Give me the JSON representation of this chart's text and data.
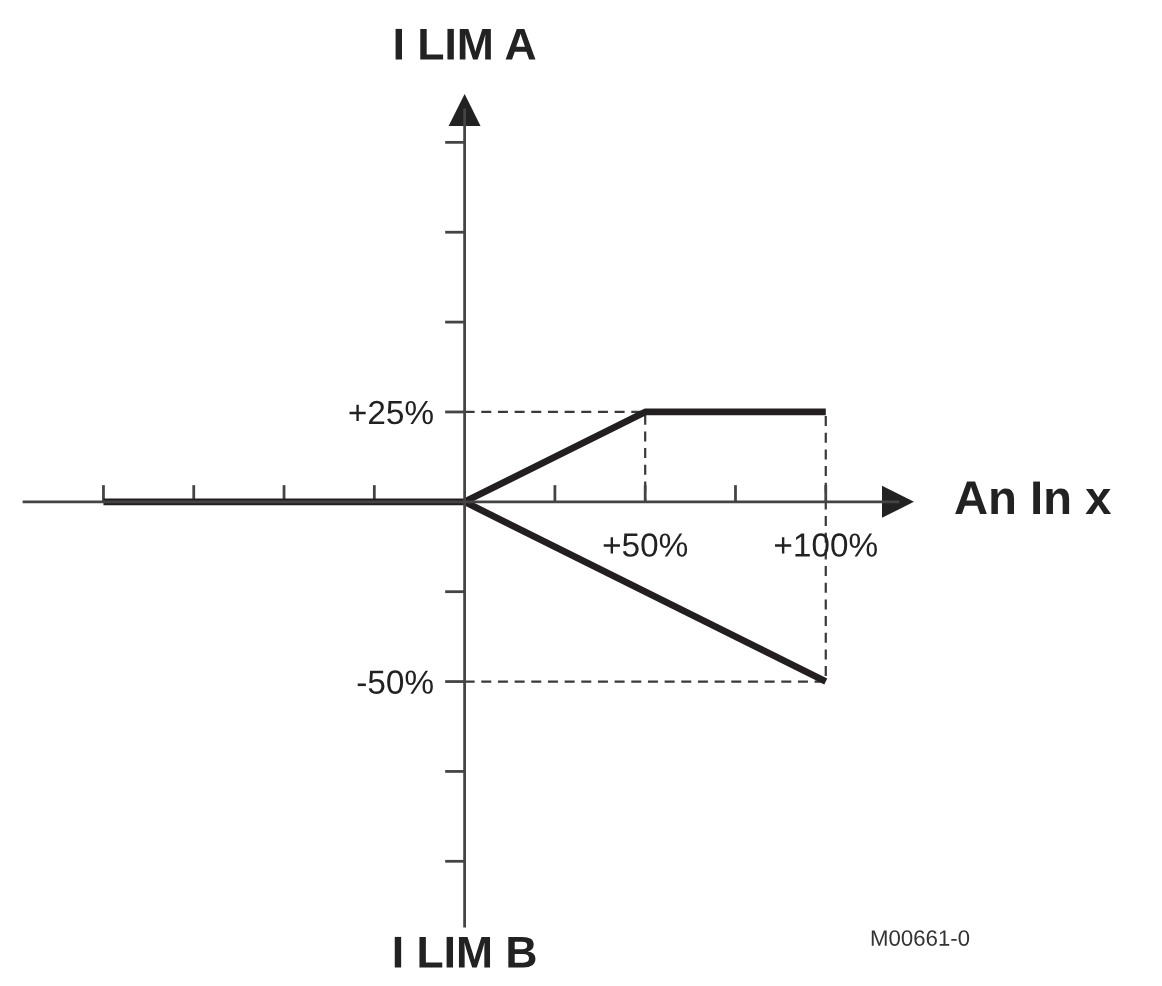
{
  "chart_data": {
    "type": "line",
    "ylabel": "I LIM A",
    "xlabel": "An In x",
    "annotations": [
      "I LIM B",
      "M00661-0"
    ],
    "series": [
      {
        "color": "#231f20",
        "x": [
          -100,
          0,
          50,
          100
        ],
        "values": [
          0,
          0,
          25,
          25
        ]
      },
      {
        "color": "#231f20",
        "x": [
          0,
          100
        ],
        "values": [
          0,
          -50
        ]
      },
      {
        "color": "#3a3a3a",
        "line_style": "dashed",
        "x": [
          0,
          50,
          50
        ],
        "values": [
          25,
          25,
          0
        ]
      },
      {
        "color": "#3a3a3a",
        "line_style": "dashed",
        "x": [
          0,
          100,
          100
        ],
        "values": [
          -50,
          -50,
          25
        ]
      }
    ],
    "xlim": [
      -122,
      120
    ],
    "ylim": [
      -118,
      109
    ],
    "xticks": [
      {
        "value": -100,
        "label": null
      },
      {
        "value": -75,
        "label": null
      },
      {
        "value": -50,
        "label": null
      },
      {
        "value": -25,
        "label": null
      },
      {
        "value": 25,
        "label": null
      },
      {
        "value": 50,
        "label": "+50%"
      },
      {
        "value": 75,
        "label": null
      },
      {
        "value": 100,
        "label": "+100%"
      }
    ],
    "yticks": [
      {
        "value": -100,
        "label": null
      },
      {
        "value": -75,
        "label": null
      },
      {
        "value": -50,
        "label": "-50%"
      },
      {
        "value": -25,
        "label": null
      },
      {
        "value": 25,
        "label": "+25%"
      },
      {
        "value": 50,
        "label": null
      },
      {
        "value": 75,
        "label": null
      },
      {
        "value": 100,
        "label": null
      }
    ],
    "grid": false,
    "line_style": "solid"
  }
}
